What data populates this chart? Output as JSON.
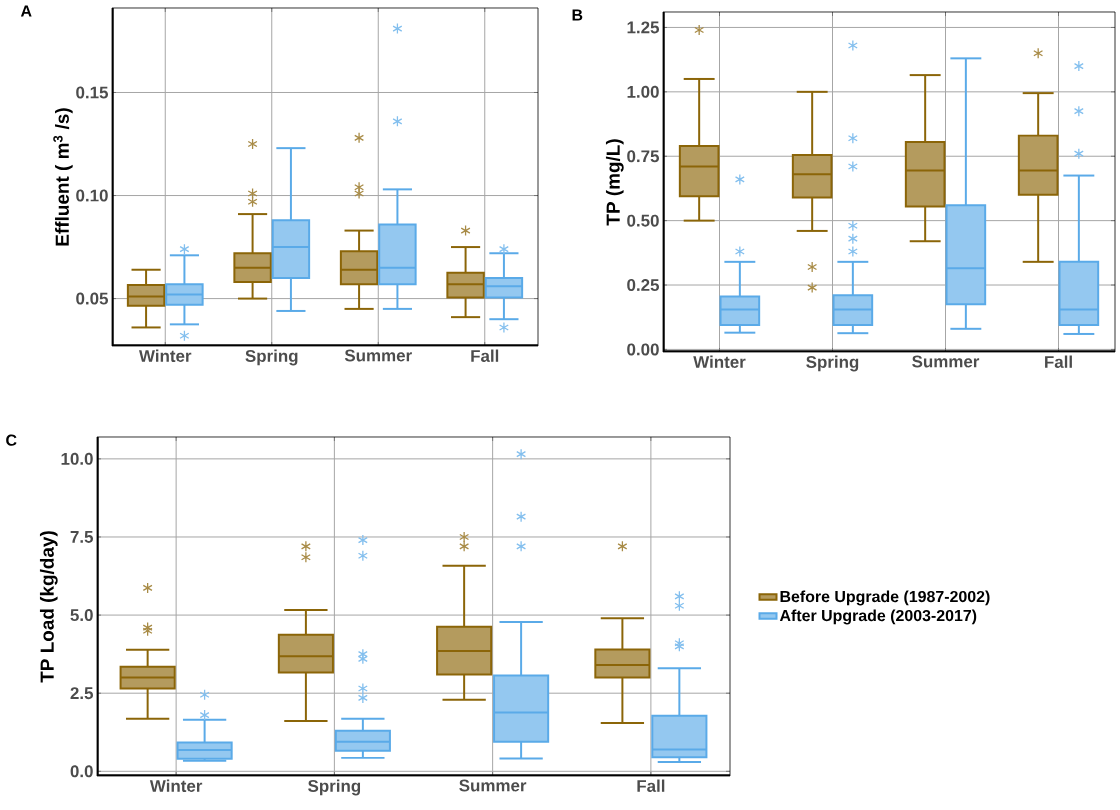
{
  "chart_data": [
    {
      "type": "box",
      "title": "A",
      "ylabel": "Effluent ( m$^{3}$ /s)",
      "categories": [
        "Winter",
        "Spring",
        "Summer",
        "Fall"
      ],
      "ylim": [
        0.027,
        0.191
      ],
      "yticks": [
        {
          "value": 0.05,
          "label": "0.05"
        },
        {
          "value": 0.1,
          "label": "0.10"
        },
        {
          "value": 0.15,
          "label": "0.15"
        }
      ],
      "grid": true,
      "marker": "star",
      "series": [
        {
          "color": "#8b6508",
          "boxes": [
            {
              "low": 0.036,
              "q1": 0.0465,
              "median": 0.051,
              "q3": 0.0566,
              "high": 0.064
            },
            {
              "low": 0.05,
              "q1": 0.058,
              "median": 0.065,
              "q3": 0.072,
              "high": 0.091,
              "outliers": [
                0.125,
                0.101,
                0.097
              ]
            },
            {
              "low": 0.045,
              "q1": 0.057,
              "median": 0.064,
              "q3": 0.073,
              "high": 0.083,
              "outliers": [
                0.128,
                0.104,
                0.101
              ]
            },
            {
              "low": 0.041,
              "q1": 0.0505,
              "median": 0.057,
              "q3": 0.0625,
              "high": 0.075,
              "outliers": [
                0.083
              ]
            }
          ]
        },
        {
          "color": "#5aaae8",
          "boxes": [
            {
              "low": 0.0375,
              "q1": 0.047,
              "median": 0.052,
              "q3": 0.057,
              "high": 0.071,
              "outliers": [
                0.074,
                0.032
              ]
            },
            {
              "low": 0.044,
              "q1": 0.06,
              "median": 0.075,
              "q3": 0.088,
              "high": 0.123
            },
            {
              "low": 0.045,
              "q1": 0.057,
              "median": 0.065,
              "q3": 0.086,
              "high": 0.103,
              "outliers": [
                0.181,
                0.136
              ]
            },
            {
              "low": 0.04,
              "q1": 0.0505,
              "median": 0.056,
              "q3": 0.06,
              "high": 0.072,
              "outliers": [
                0.074,
                0.036
              ]
            }
          ]
        }
      ]
    },
    {
      "type": "box",
      "title": "B",
      "ylabel": "TP (mg/L)",
      "categories": [
        "Winter",
        "Spring",
        "Summer",
        "Fall"
      ],
      "ylim": [
        -0.01,
        1.31
      ],
      "yticks": [
        {
          "value": 0,
          "label": "0.00"
        },
        {
          "value": 0.25,
          "label": "0.25"
        },
        {
          "value": 0.5,
          "label": "0.50"
        },
        {
          "value": 0.75,
          "label": "0.75"
        },
        {
          "value": 1,
          "label": "1.00"
        },
        {
          "value": 1.25,
          "label": "1.25"
        }
      ],
      "grid": true,
      "marker": "star",
      "series": [
        {
          "color": "#8b6508",
          "boxes": [
            {
              "low": 0.5,
              "q1": 0.595,
              "median": 0.71,
              "q3": 0.79,
              "high": 1.05,
              "outliers": [
                1.24
              ]
            },
            {
              "low": 0.46,
              "q1": 0.59,
              "median": 0.68,
              "q3": 0.755,
              "high": 1.0,
              "outliers": [
                0.32,
                0.24
              ]
            },
            {
              "low": 0.42,
              "q1": 0.555,
              "median": 0.695,
              "q3": 0.805,
              "high": 1.065
            },
            {
              "low": 0.34,
              "q1": 0.6,
              "median": 0.695,
              "q3": 0.83,
              "high": 0.995,
              "outliers": [
                1.15
              ]
            }
          ]
        },
        {
          "color": "#5aaae8",
          "boxes": [
            {
              "low": 0.065,
              "q1": 0.095,
              "median": 0.155,
              "q3": 0.205,
              "high": 0.34,
              "outliers": [
                0.66,
                0.38
              ]
            },
            {
              "low": 0.063,
              "q1": 0.095,
              "median": 0.155,
              "q3": 0.21,
              "high": 0.34,
              "outliers": [
                1.18,
                0.82,
                0.71,
                0.48,
                0.43,
                0.38
              ]
            },
            {
              "low": 0.08,
              "q1": 0.175,
              "median": 0.315,
              "q3": 0.56,
              "high": 1.13
            },
            {
              "low": 0.06,
              "q1": 0.095,
              "median": 0.155,
              "q3": 0.34,
              "high": 0.675,
              "outliers": [
                1.1,
                0.925,
                0.76
              ]
            }
          ]
        }
      ]
    },
    {
      "type": "box",
      "title": "C",
      "ylabel": "TP Load (kg/day)",
      "categories": [
        "Winter",
        "Spring",
        "Summer",
        "Fall"
      ],
      "ylim": [
        -0.15,
        10.7
      ],
      "yticks": [
        {
          "value": 0,
          "label": "0.0"
        },
        {
          "value": 2.5,
          "label": "2.5"
        },
        {
          "value": 5,
          "label": "5.0"
        },
        {
          "value": 7.5,
          "label": "7.5"
        },
        {
          "value": 10,
          "label": "10.0"
        }
      ],
      "grid": true,
      "marker": "star",
      "legend": "right",
      "series": [
        {
          "name": "Before Upgrade (1987-2002)",
          "color": "#8b6508",
          "boxes": [
            {
              "low": 1.68,
              "q1": 2.65,
              "median": 3.0,
              "q3": 3.35,
              "high": 3.89,
              "outliers": [
                5.87,
                4.6,
                4.5
              ]
            },
            {
              "low": 1.61,
              "q1": 3.16,
              "median": 3.68,
              "q3": 4.37,
              "high": 5.16,
              "outliers": [
                7.2,
                6.85
              ]
            },
            {
              "low": 2.29,
              "q1": 3.1,
              "median": 3.85,
              "q3": 4.63,
              "high": 6.58,
              "outliers": [
                7.5,
                7.2
              ]
            },
            {
              "low": 1.55,
              "q1": 3.0,
              "median": 3.4,
              "q3": 3.9,
              "high": 4.9,
              "outliers": [
                7.2
              ]
            }
          ]
        },
        {
          "name": "After Upgrade (2003-2017)",
          "color": "#5aaae8",
          "boxes": [
            {
              "low": 0.34,
              "q1": 0.4,
              "median": 0.68,
              "q3": 0.92,
              "high": 1.65,
              "outliers": [
                2.45,
                1.8
              ]
            },
            {
              "low": 0.43,
              "q1": 0.66,
              "median": 0.95,
              "q3": 1.3,
              "high": 1.68,
              "outliers": [
                7.4,
                6.9,
                3.75,
                3.6,
                2.65,
                2.35
              ]
            },
            {
              "low": 0.41,
              "q1": 0.95,
              "median": 1.88,
              "q3": 3.07,
              "high": 4.78,
              "outliers": [
                10.15,
                8.15,
                7.2
              ]
            },
            {
              "low": 0.3,
              "q1": 0.45,
              "median": 0.7,
              "q3": 1.78,
              "high": 3.3,
              "outliers": [
                5.6,
                5.3,
                4.1,
                4.0
              ]
            }
          ]
        }
      ]
    }
  ]
}
